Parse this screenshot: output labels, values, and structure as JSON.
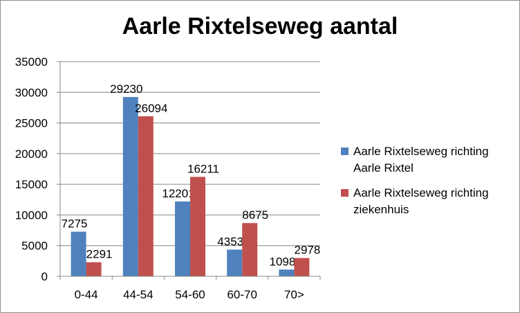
{
  "chart_data": {
    "type": "bar",
    "title": "Aarle Rixtelseweg aantal",
    "categories": [
      "0-44",
      "44-54",
      "54-60",
      "60-70",
      "70>"
    ],
    "series": [
      {
        "name": "Aarle Rixtelseweg richting Aarle Rixtel",
        "color": "#4f81bd",
        "values": [
          7275,
          29230,
          12201,
          4353,
          1098
        ]
      },
      {
        "name": "Aarle Rixtelseweg richting ziekenhuis",
        "color": "#c0504d",
        "values": [
          2291,
          26094,
          16211,
          8675,
          2978
        ]
      }
    ],
    "ylim": [
      0,
      35000
    ],
    "yticks": [
      "0",
      "5000",
      "10000",
      "15000",
      "20000",
      "25000",
      "30000",
      "35000"
    ],
    "grid": true,
    "legend": "right"
  },
  "legend": {
    "items": [
      {
        "line1": "Aarle Rixtelseweg richting",
        "line2": "Aarle Rixtel"
      },
      {
        "line1": "Aarle Rixtelseweg richting",
        "line2": "ziekenhuis"
      }
    ]
  }
}
